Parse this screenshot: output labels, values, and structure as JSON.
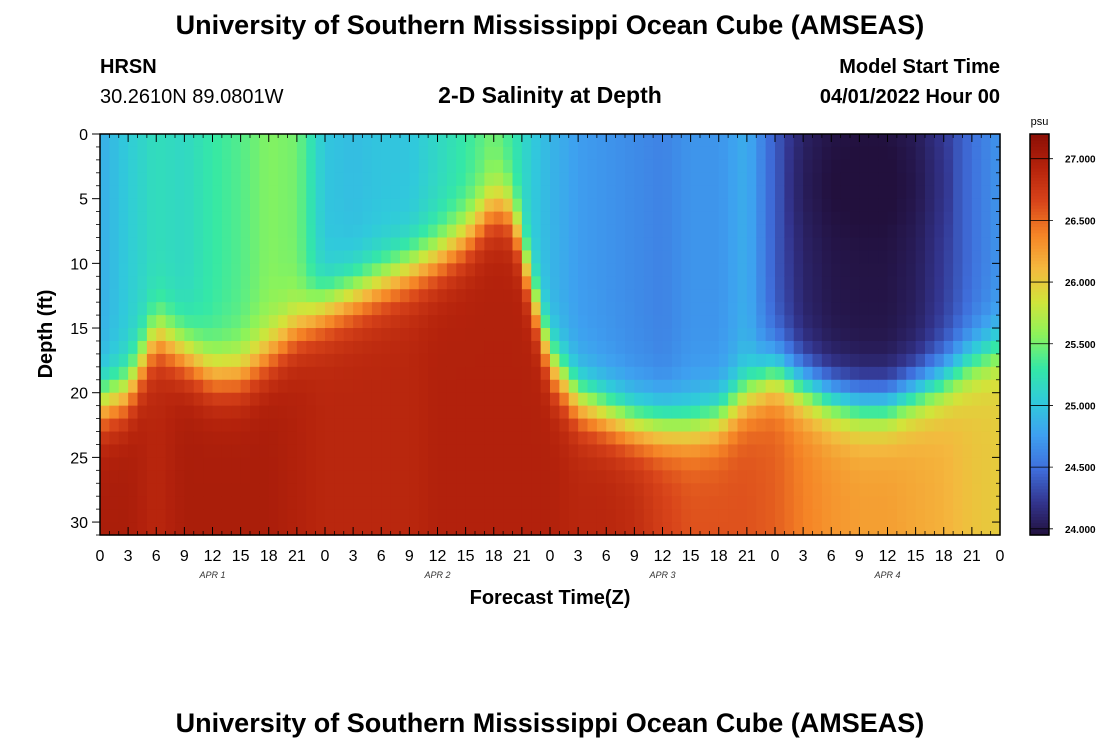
{
  "header": {
    "title": "University of Southern Mississippi Ocean Cube (AMSEAS)",
    "station_code": "HRSN",
    "station_coords": "30.2610N  89.0801W",
    "plot_title": "2-D Salinity at Depth",
    "start_label": "Model Start Time",
    "start_value": "04/01/2022 Hour 00"
  },
  "footer": {
    "title": "University of Southern Mississippi Ocean Cube (AMSEAS)"
  },
  "colors": {
    "background": "#ffffff",
    "axis": "#000000",
    "stops": [
      "#22103d",
      "#33358f",
      "#3f6fdc",
      "#3ea0f0",
      "#30cadb",
      "#34e8a6",
      "#8cf35a",
      "#d2e43a",
      "#f4b83e",
      "#f58426",
      "#d8441a",
      "#b5230c",
      "#8c0f06"
    ]
  },
  "chart_data": {
    "type": "heatmap",
    "title": "2-D Salinity at Depth",
    "xlabel": "Forecast Time(Z)",
    "ylabel": "Depth (ft)",
    "x_unit": "forecast hour",
    "xlim": [
      0,
      96
    ],
    "ylim": [
      0,
      31
    ],
    "y_inverted": true,
    "x_ticks": [
      0,
      3,
      6,
      9,
      12,
      15,
      18,
      21,
      24,
      27,
      30,
      33,
      36,
      39,
      42,
      45,
      48,
      51,
      54,
      57,
      60,
      63,
      66,
      69,
      72,
      75,
      78,
      81,
      84,
      87,
      90,
      93,
      96
    ],
    "x_tick_labels": [
      "0",
      "3",
      "6",
      "9",
      "12",
      "15",
      "18",
      "21",
      "0",
      "3",
      "6",
      "9",
      "12",
      "15",
      "18",
      "21",
      "0",
      "3",
      "6",
      "9",
      "12",
      "15",
      "18",
      "21",
      "0",
      "3",
      "6",
      "9",
      "12",
      "15",
      "18",
      "21",
      "0"
    ],
    "date_labels": [
      {
        "x": 12,
        "label": "APR 1"
      },
      {
        "x": 36,
        "label": "APR 2"
      },
      {
        "x": 60,
        "label": "APR 3"
      },
      {
        "x": 84,
        "label": "APR 4"
      }
    ],
    "y_ticks": [
      0,
      5,
      10,
      15,
      20,
      25,
      30
    ],
    "y_tick_labels": [
      "0",
      "5",
      "10",
      "15",
      "20",
      "25",
      "30"
    ],
    "colorbar": {
      "unit": "psu",
      "range": [
        23.95,
        27.2
      ],
      "ticks": [
        24.0,
        24.5,
        25.0,
        25.5,
        26.0,
        26.5,
        27.0
      ],
      "tick_labels": [
        "24.000",
        "24.500",
        "25.000",
        "25.500",
        "26.000",
        "26.500",
        "27.000"
      ]
    },
    "grid_resolution": {
      "time_step_hours": 1,
      "depth_step_ft": 1
    },
    "profile_keyframes": [
      {
        "x": 0,
        "surface": 24.85,
        "mix_depth": 21.0,
        "bottom": 27.0
      },
      {
        "x": 3,
        "surface": 25.05,
        "mix_depth": 20.0,
        "bottom": 27.0
      },
      {
        "x": 6,
        "surface": 25.2,
        "mix_depth": 15.5,
        "bottom": 26.9
      },
      {
        "x": 9,
        "surface": 25.15,
        "mix_depth": 17.0,
        "bottom": 27.0
      },
      {
        "x": 12,
        "surface": 25.3,
        "mix_depth": 18.5,
        "bottom": 27.0
      },
      {
        "x": 15,
        "surface": 25.4,
        "mix_depth": 18.5,
        "bottom": 27.0
      },
      {
        "x": 18,
        "surface": 25.55,
        "mix_depth": 17.0,
        "bottom": 27.0
      },
      {
        "x": 21,
        "surface": 25.5,
        "mix_depth": 15.0,
        "bottom": 26.95
      },
      {
        "x": 24,
        "surface": 25.0,
        "mix_depth": 13.5,
        "bottom": 26.9
      },
      {
        "x": 27,
        "surface": 24.95,
        "mix_depth": 12.5,
        "bottom": 26.9
      },
      {
        "x": 30,
        "surface": 25.0,
        "mix_depth": 11.5,
        "bottom": 26.9
      },
      {
        "x": 33,
        "surface": 25.0,
        "mix_depth": 10.5,
        "bottom": 26.9
      },
      {
        "x": 36,
        "surface": 25.15,
        "mix_depth": 9.5,
        "bottom": 26.95
      },
      {
        "x": 39,
        "surface": 25.3,
        "mix_depth": 8.0,
        "bottom": 26.95
      },
      {
        "x": 42,
        "surface": 25.5,
        "mix_depth": 5.5,
        "bottom": 26.95
      },
      {
        "x": 44,
        "surface": 25.3,
        "mix_depth": 6.0,
        "bottom": 26.95
      },
      {
        "x": 46,
        "surface": 25.05,
        "mix_depth": 12.0,
        "bottom": 26.95
      },
      {
        "x": 48,
        "surface": 24.9,
        "mix_depth": 17.5,
        "bottom": 26.95
      },
      {
        "x": 51,
        "surface": 24.75,
        "mix_depth": 20.5,
        "bottom": 26.9
      },
      {
        "x": 54,
        "surface": 24.7,
        "mix_depth": 21.5,
        "bottom": 26.9
      },
      {
        "x": 57,
        "surface": 24.65,
        "mix_depth": 22.3,
        "bottom": 26.85
      },
      {
        "x": 60,
        "surface": 24.6,
        "mix_depth": 22.5,
        "bottom": 26.7
      },
      {
        "x": 63,
        "surface": 24.7,
        "mix_depth": 22.5,
        "bottom": 26.6
      },
      {
        "x": 66,
        "surface": 24.7,
        "mix_depth": 22.0,
        "bottom": 26.6
      },
      {
        "x": 69,
        "surface": 24.85,
        "mix_depth": 20.0,
        "bottom": 26.6
      },
      {
        "x": 72,
        "surface": 24.4,
        "mix_depth": 18.5,
        "bottom": 26.55
      },
      {
        "x": 75,
        "surface": 24.1,
        "mix_depth": 19.5,
        "bottom": 26.4
      },
      {
        "x": 78,
        "surface": 24.0,
        "mix_depth": 20.5,
        "bottom": 26.3
      },
      {
        "x": 81,
        "surface": 23.98,
        "mix_depth": 21.0,
        "bottom": 26.25
      },
      {
        "x": 84,
        "surface": 23.98,
        "mix_depth": 21.0,
        "bottom": 26.25
      },
      {
        "x": 87,
        "surface": 24.05,
        "mix_depth": 20.0,
        "bottom": 26.2
      },
      {
        "x": 90,
        "surface": 24.25,
        "mix_depth": 19.0,
        "bottom": 26.15
      },
      {
        "x": 93,
        "surface": 24.5,
        "mix_depth": 17.5,
        "bottom": 26.05
      },
      {
        "x": 96,
        "surface": 24.7,
        "mix_depth": 16.5,
        "bottom": 26.0
      }
    ]
  }
}
